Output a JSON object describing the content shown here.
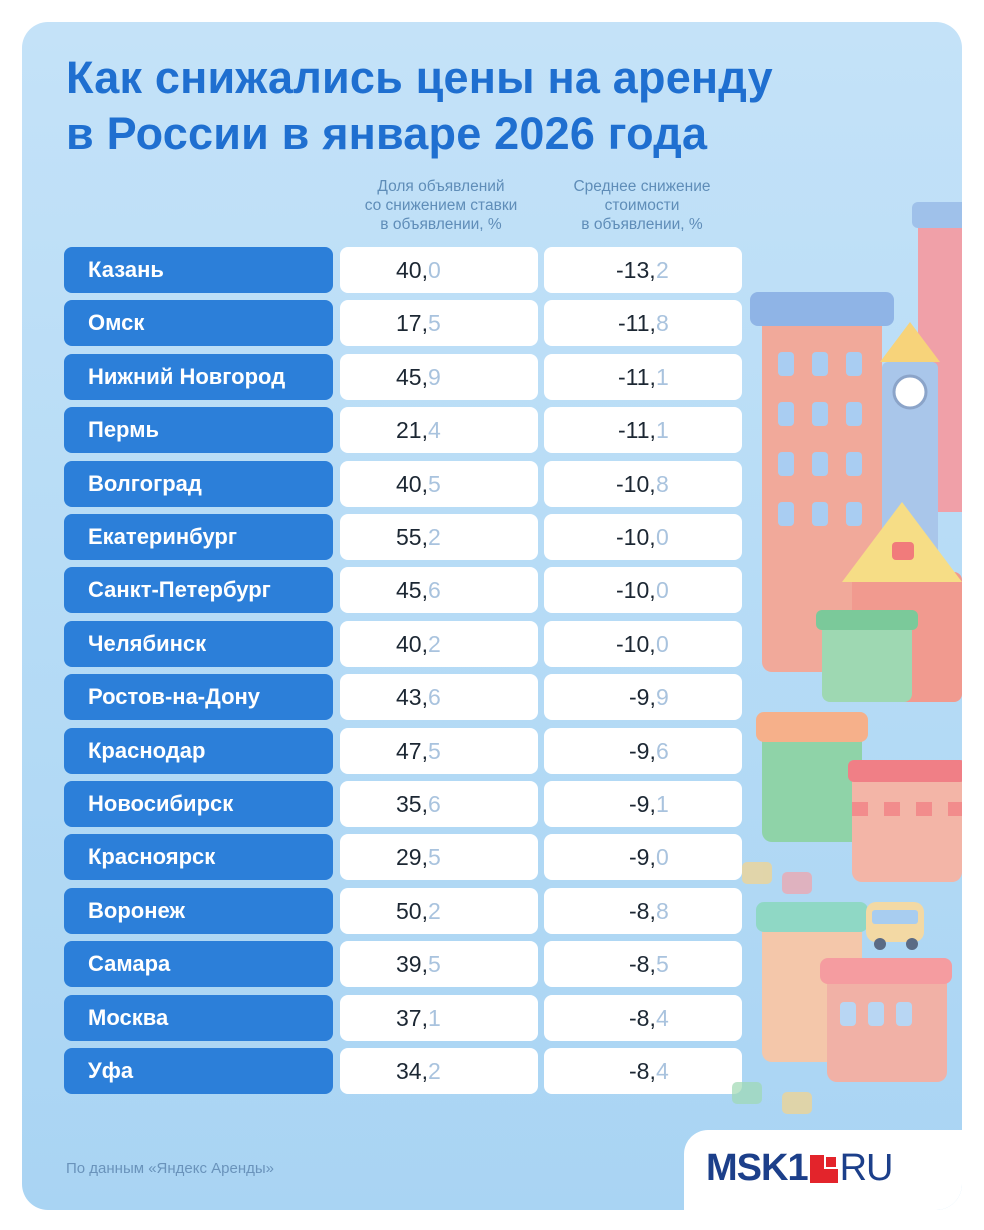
{
  "title_line1": "Как снижались цены на аренду",
  "title_line2": "в России в январе 2026 года",
  "columns": {
    "share": [
      "Доля объявлений",
      "со снижением ставки",
      "в объявлении, %"
    ],
    "drop": [
      "Среднее снижение",
      "стоимости",
      "в объявлении, %"
    ]
  },
  "source": "По данным «Яндекс Аренды»",
  "logo": {
    "main": "MSK1",
    "suffix": "RU",
    "accent_color": "#e3242b"
  },
  "colors": {
    "title": "#1f6fd0",
    "city_bar": "#2c7fd9",
    "decimal": "#a9c3de"
  },
  "chart_data": {
    "type": "table",
    "title": "Как снижались цены на аренду в России в январе 2026 года",
    "columns": [
      "Доля объявлений со снижением ставки в объявлении, %",
      "Среднее снижение стоимости в объявлении, %"
    ],
    "rows": [
      {
        "city": "Казань",
        "share": "40,0",
        "drop": "-13,2"
      },
      {
        "city": "Омск",
        "share": "17,5",
        "drop": "-11,8"
      },
      {
        "city": "Нижний Новгород",
        "share": "45,9",
        "drop": "-11,1"
      },
      {
        "city": "Пермь",
        "share": "21,4",
        "drop": "-11,1"
      },
      {
        "city": "Волгоград",
        "share": "40,5",
        "drop": "-10,8"
      },
      {
        "city": "Екатеринбург",
        "share": "55,2",
        "drop": "-10,0"
      },
      {
        "city": "Санкт-Петербург",
        "share": "45,6",
        "drop": "-10,0"
      },
      {
        "city": "Челябинск",
        "share": "40,2",
        "drop": "-10,0"
      },
      {
        "city": "Ростов-на-Дону",
        "share": "43,6",
        "drop": "-9,9"
      },
      {
        "city": "Краснодар",
        "share": "47,5",
        "drop": "-9,6"
      },
      {
        "city": "Новосибирск",
        "share": "35,6",
        "drop": "-9,1"
      },
      {
        "city": "Красноярск",
        "share": "29,5",
        "drop": "-9,0"
      },
      {
        "city": "Воронеж",
        "share": "50,2",
        "drop": "-8,8"
      },
      {
        "city": "Самара",
        "share": "39,5",
        "drop": "-8,5"
      },
      {
        "city": "Москва",
        "share": "37,1",
        "drop": "-8,4"
      },
      {
        "city": "Уфа",
        "share": "34,2",
        "drop": "-8,4"
      }
    ]
  }
}
